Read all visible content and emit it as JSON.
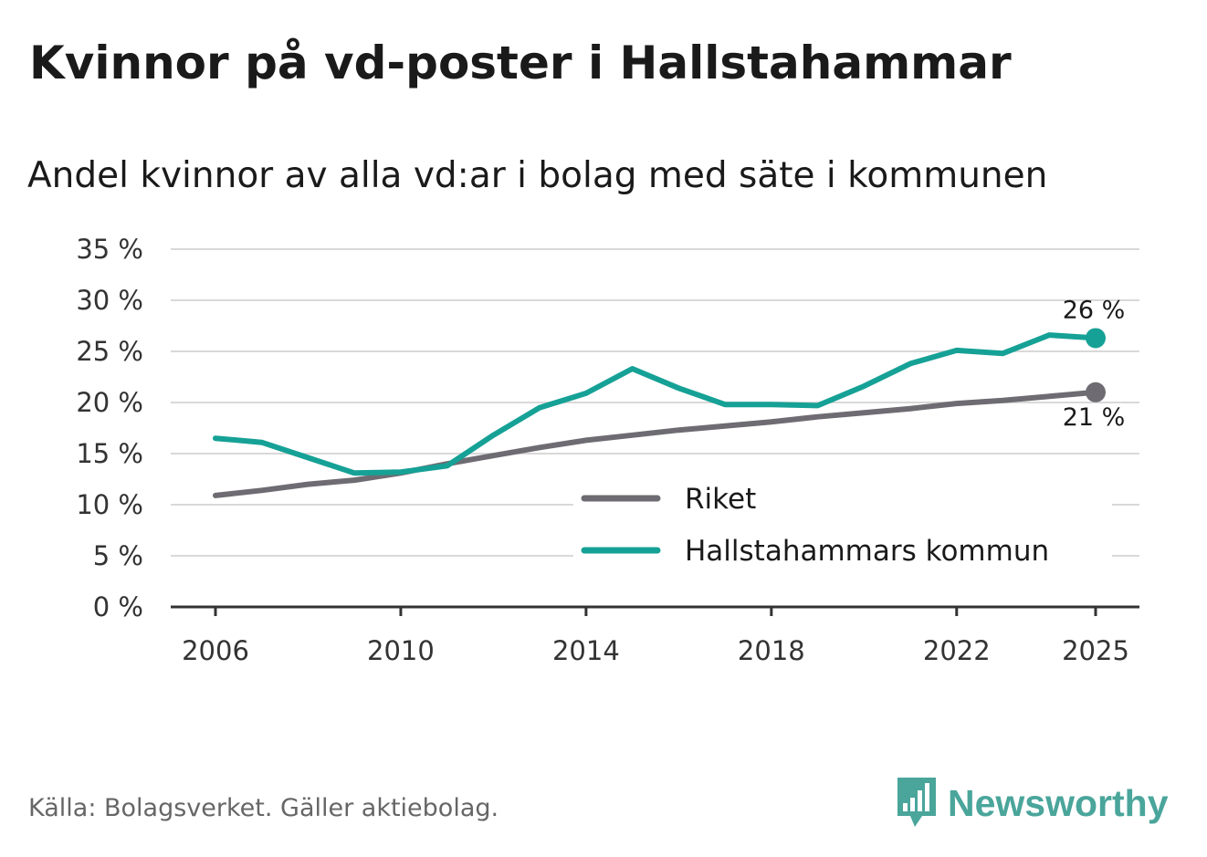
{
  "title": "Kvinnor på vd-poster i Hallstahammar",
  "subtitle": "Andel kvinnor av alla vd:ar i bolag med säte i kommunen",
  "source": "Källa: Bolagsverket. Gäller aktiebolag.",
  "brand": {
    "name": "Newsworthy",
    "color": "#4aa59b",
    "icon": "bar-chart-speech-bubble-icon"
  },
  "chart_data": {
    "type": "line",
    "title": "Kvinnor på vd-poster i Hallstahammar",
    "subtitle": "Andel kvinnor av alla vd:ar i bolag med säte i kommunen",
    "xlabel": "",
    "ylabel": "",
    "x": [
      2006,
      2007,
      2008,
      2009,
      2010,
      2011,
      2012,
      2013,
      2014,
      2015,
      2016,
      2017,
      2018,
      2019,
      2020,
      2021,
      2022,
      2023,
      2024,
      2025
    ],
    "xticks": [
      2006,
      2010,
      2014,
      2018,
      2022,
      2025
    ],
    "xtick_labels": [
      "2006",
      "2010",
      "2014",
      "2018",
      "2022",
      "2025"
    ],
    "ylim": [
      0,
      35
    ],
    "yticks": [
      0,
      5,
      10,
      15,
      20,
      25,
      30,
      35
    ],
    "ytick_labels": [
      "0 %",
      "5 %",
      "10 %",
      "15 %",
      "20 %",
      "25 %",
      "30 %",
      "35 %"
    ],
    "grid": true,
    "legend_position": "bottom-right",
    "series": [
      {
        "name": "Riket",
        "color": "#6e6c72",
        "values": [
          10.9,
          11.4,
          12.0,
          12.4,
          13.1,
          14.0,
          14.8,
          15.6,
          16.3,
          16.8,
          17.3,
          17.7,
          18.1,
          18.6,
          19.0,
          19.4,
          19.9,
          20.2,
          20.6,
          21.0
        ],
        "end_label": "21 %"
      },
      {
        "name": "Hallstahammars kommun",
        "color": "#16a196",
        "values": [
          16.5,
          16.1,
          14.6,
          13.1,
          13.2,
          13.8,
          16.8,
          19.5,
          20.9,
          23.3,
          21.4,
          19.8,
          19.8,
          19.7,
          21.6,
          23.8,
          25.1,
          24.8,
          26.6,
          26.3
        ],
        "end_label": "26 %"
      }
    ]
  }
}
